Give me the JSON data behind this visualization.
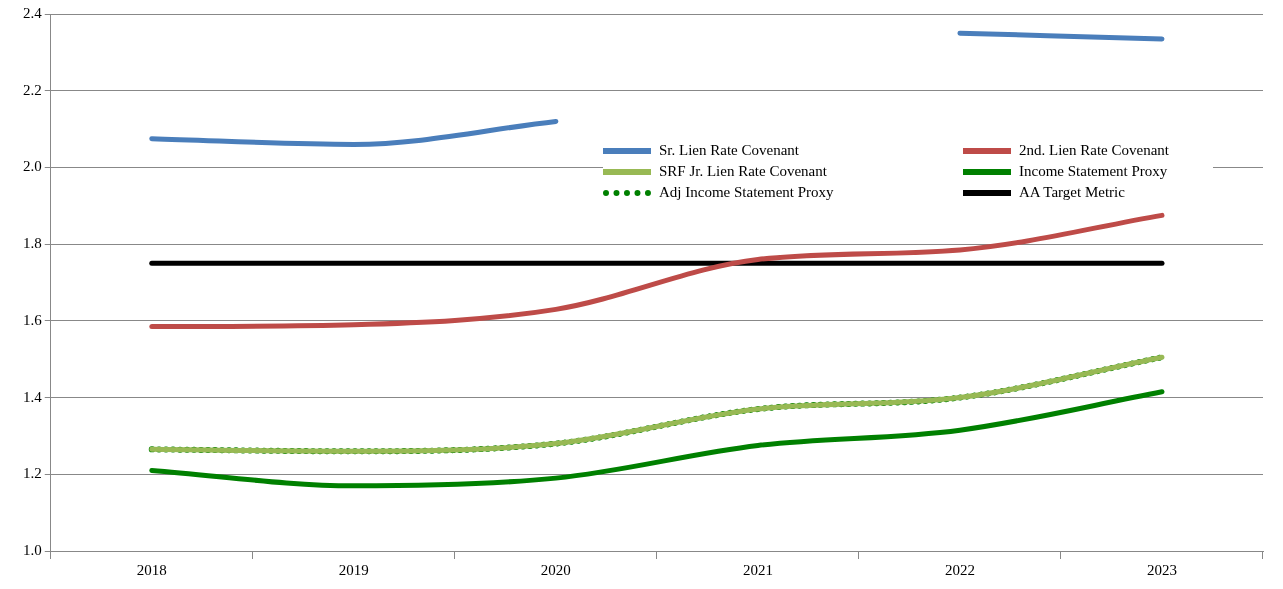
{
  "chart_data": {
    "type": "line",
    "categories": [
      "2018",
      "2019",
      "2020",
      "2021",
      "2022",
      "2023"
    ],
    "ylim": [
      1.0,
      2.4
    ],
    "yticks": [
      {
        "value": 1.0,
        "label": "1.0"
      },
      {
        "value": 1.2,
        "label": "1.2"
      },
      {
        "value": 1.4,
        "label": "1.4"
      },
      {
        "value": 1.6,
        "label": "1.6"
      },
      {
        "value": 1.8,
        "label": "1.8"
      },
      {
        "value": 2.0,
        "label": "2.0"
      },
      {
        "value": 2.2,
        "label": "2.2"
      },
      {
        "value": 2.4,
        "label": "2.4"
      }
    ],
    "grid": "y",
    "legend": "top right",
    "marker": "none",
    "series": [
      {
        "name": "Sr. Lien Rate Covenant",
        "color": "#4a7ebb",
        "values": [
          2.075,
          2.06,
          2.12,
          null,
          2.35,
          2.335
        ]
      },
      {
        "name": "2nd. Lien Rate Covenant",
        "color": "#be4b48",
        "values": [
          1.585,
          1.59,
          1.63,
          1.76,
          1.785,
          1.875
        ]
      },
      {
        "name": "SRF Jr. Lien Rate Covenant",
        "color": "#98b954",
        "values": [
          1.265,
          1.26,
          1.28,
          1.37,
          1.4,
          1.505
        ]
      },
      {
        "name": "Income Statement Proxy",
        "color": "#008000",
        "values": [
          1.21,
          1.17,
          1.19,
          1.275,
          1.315,
          1.415
        ]
      },
      {
        "name": "Adj Income Statement Proxy",
        "color": "#008000",
        "line_style": "dotted",
        "values": [
          1.265,
          1.26,
          1.28,
          1.37,
          1.4,
          1.505
        ]
      },
      {
        "name": "AA Target Metric",
        "color": "#000000",
        "values": [
          1.75,
          1.75,
          1.75,
          1.75,
          1.75,
          1.75
        ]
      }
    ]
  }
}
